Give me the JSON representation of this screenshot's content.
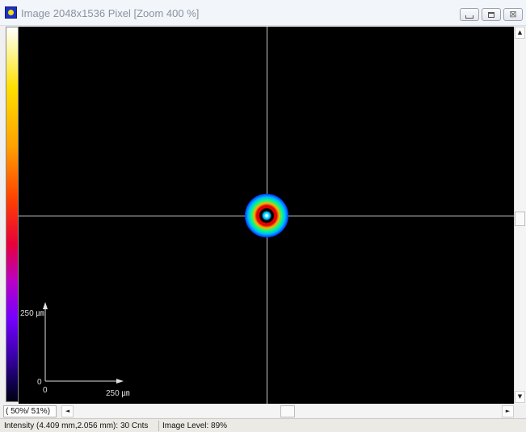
{
  "window": {
    "title": "Image 2048x1536 Pixel [Zoom 400 %]",
    "icon": "beam-profile-icon",
    "buttons": {
      "minimize": "minimize-icon",
      "maximize": "maximize-icon",
      "close_glyph": "⊠"
    }
  },
  "colorbar": {
    "name": "intensity-colorbar"
  },
  "image": {
    "crosshair": true,
    "axes": {
      "y_max_label": "250 ㎛",
      "y_origin_label": "0",
      "x_origin_label": "0",
      "x_max_label": "250 ㎛"
    }
  },
  "scroll": {
    "zoom_position": "( 50%/ 51%)",
    "up": "▲",
    "down": "▼",
    "left": "◄",
    "right": "►"
  },
  "status": {
    "intensity": "Intensity (4.409 mm,2.056 mm): 30 Cnts",
    "image_level": "Image Level: 89%"
  }
}
